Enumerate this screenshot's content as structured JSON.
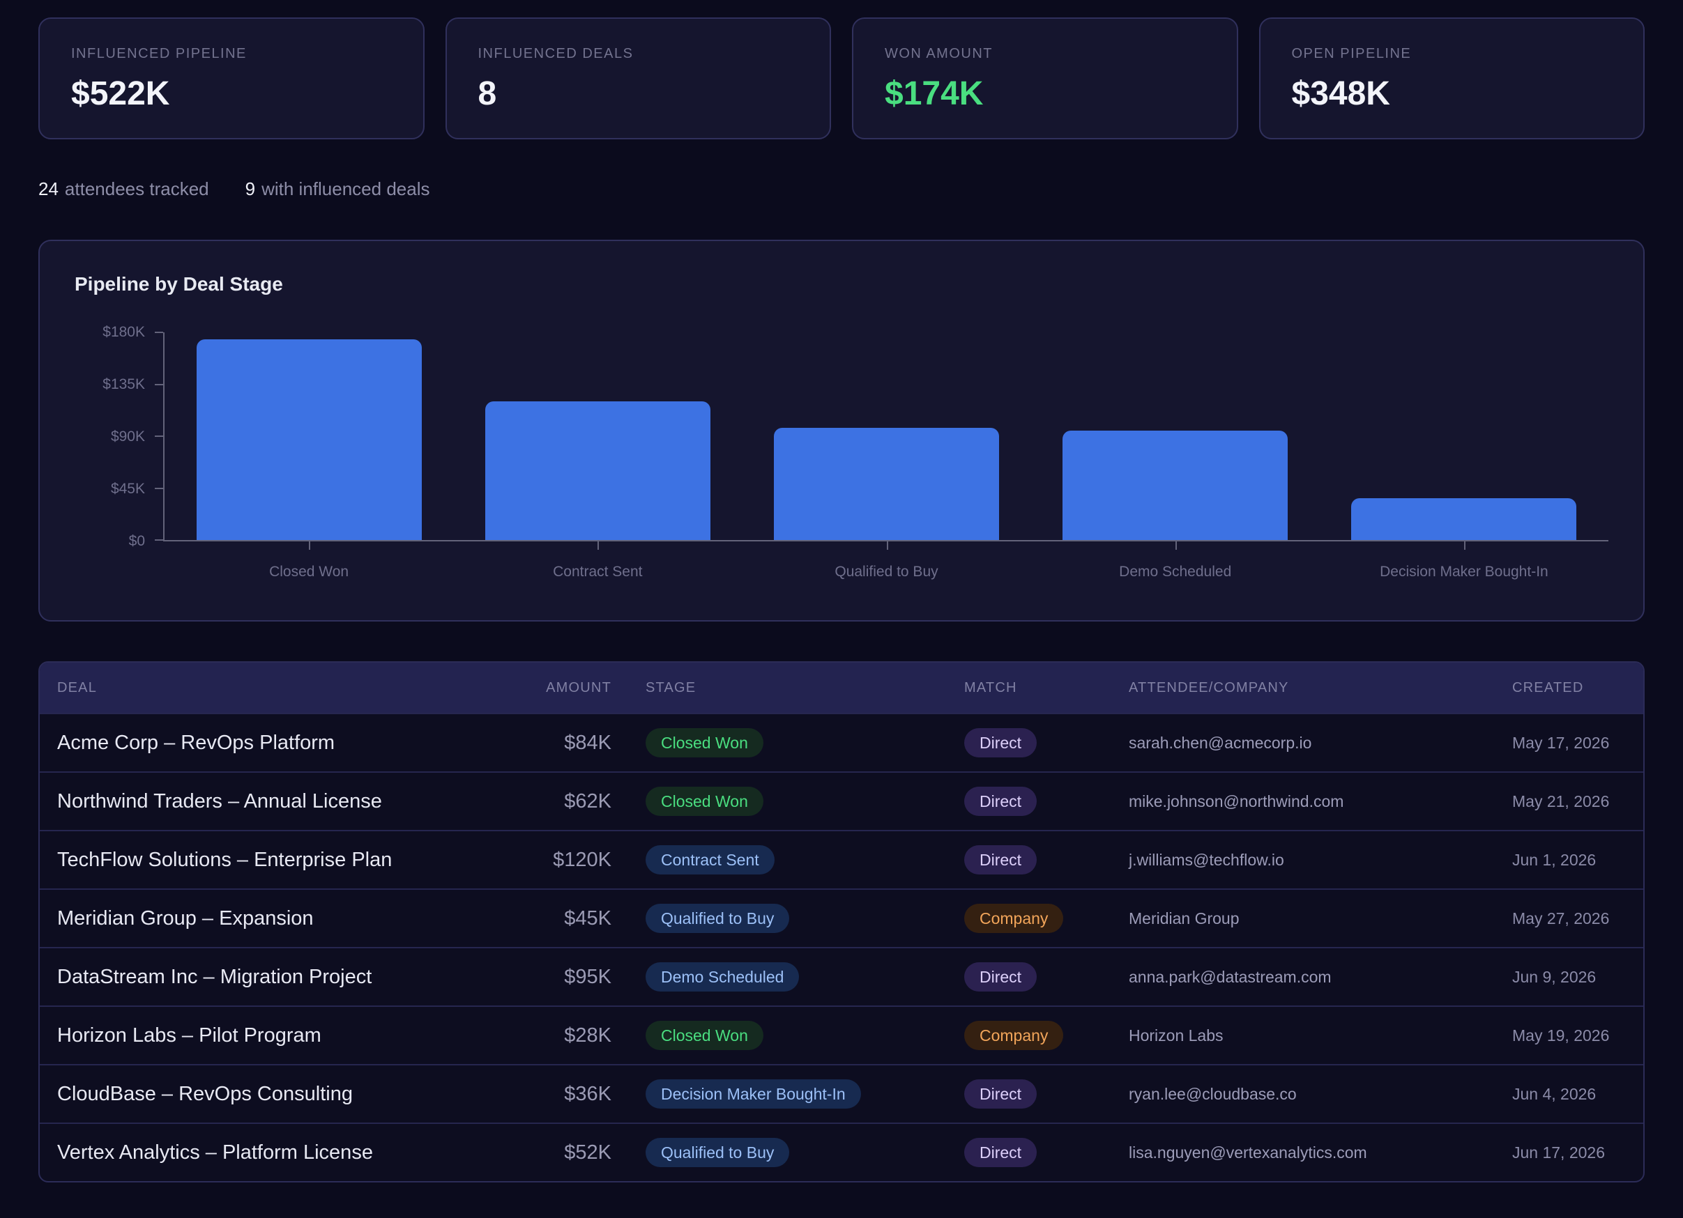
{
  "kpi_cards": [
    {
      "label": "INFLUENCED PIPELINE",
      "value": "$522K",
      "accent": "default"
    },
    {
      "label": "INFLUENCED DEALS",
      "value": "8",
      "accent": "default"
    },
    {
      "label": "WON AMOUNT",
      "value": "$174K",
      "accent": "green"
    },
    {
      "label": "OPEN PIPELINE",
      "value": "$348K",
      "accent": "default"
    }
  ],
  "summary": [
    {
      "number": "24",
      "label": "attendees tracked"
    },
    {
      "number": "9",
      "label": "with influenced deals"
    }
  ],
  "chart_data": {
    "type": "bar",
    "title": "Pipeline by Deal Stage",
    "categories": [
      "Closed Won",
      "Contract Sent",
      "Qualified to Buy",
      "Demo Scheduled",
      "Decision Maker Bought-In"
    ],
    "values": [
      174,
      120,
      97,
      95,
      36
    ],
    "value_unit": "USD thousands",
    "xlabel": "",
    "ylabel": "",
    "ylim": [
      0,
      180
    ],
    "yticks": [
      {
        "label": "$180K",
        "value": 180
      },
      {
        "label": "$135K",
        "value": 135
      },
      {
        "label": "$90K",
        "value": 90
      },
      {
        "label": "$45K",
        "value": 45
      },
      {
        "label": "$0",
        "value": 0
      }
    ],
    "bar_color": "#3d72e3",
    "grid": false,
    "legend": false
  },
  "table": {
    "columns": [
      "DEAL",
      "AMOUNT",
      "STAGE",
      "MATCH",
      "ATTENDEE/COMPANY",
      "CREATED"
    ],
    "rows": [
      {
        "deal": "Acme Corp – RevOps Platform",
        "amount": "$84K",
        "stage": "Closed Won",
        "stage_kind": "won",
        "match": "Direct",
        "match_kind": "direct",
        "attendee": "sarah.chen@acmecorp.io",
        "created": "May 17, 2026"
      },
      {
        "deal": "Northwind Traders – Annual License",
        "amount": "$62K",
        "stage": "Closed Won",
        "stage_kind": "won",
        "match": "Direct",
        "match_kind": "direct",
        "attendee": "mike.johnson@northwind.com",
        "created": "May 21, 2026"
      },
      {
        "deal": "TechFlow Solutions – Enterprise Plan",
        "amount": "$120K",
        "stage": "Contract Sent",
        "stage_kind": "open",
        "match": "Direct",
        "match_kind": "direct",
        "attendee": "j.williams@techflow.io",
        "created": "Jun 1, 2026"
      },
      {
        "deal": "Meridian Group – Expansion",
        "amount": "$45K",
        "stage": "Qualified to Buy",
        "stage_kind": "open",
        "match": "Company",
        "match_kind": "company",
        "attendee": "Meridian Group",
        "created": "May 27, 2026"
      },
      {
        "deal": "DataStream Inc – Migration Project",
        "amount": "$95K",
        "stage": "Demo Scheduled",
        "stage_kind": "open",
        "match": "Direct",
        "match_kind": "direct",
        "attendee": "anna.park@datastream.com",
        "created": "Jun 9, 2026"
      },
      {
        "deal": "Horizon Labs – Pilot Program",
        "amount": "$28K",
        "stage": "Closed Won",
        "stage_kind": "won",
        "match": "Company",
        "match_kind": "company",
        "attendee": "Horizon Labs",
        "created": "May 19, 2026"
      },
      {
        "deal": "CloudBase – RevOps Consulting",
        "amount": "$36K",
        "stage": "Decision Maker Bought-In",
        "stage_kind": "open",
        "match": "Direct",
        "match_kind": "direct",
        "attendee": "ryan.lee@cloudbase.co",
        "created": "Jun 4, 2026"
      },
      {
        "deal": "Vertex Analytics – Platform License",
        "amount": "$52K",
        "stage": "Qualified to Buy",
        "stage_kind": "open",
        "match": "Direct",
        "match_kind": "direct",
        "attendee": "lisa.nguyen@vertexanalytics.com",
        "created": "Jun 17, 2026"
      }
    ]
  },
  "colors": {
    "page_bg": "#0b0b1d",
    "card_bg": "#15152e",
    "card_border": "#30305c",
    "accent_green": "#4ade80",
    "bar_blue": "#3d72e3",
    "table_header_bg": "#232350",
    "stage_won_text": "#4ade80",
    "stage_open_text": "#9cc0f7",
    "match_direct_text": "#ddd0fa",
    "match_company_text": "#f2a55a"
  }
}
